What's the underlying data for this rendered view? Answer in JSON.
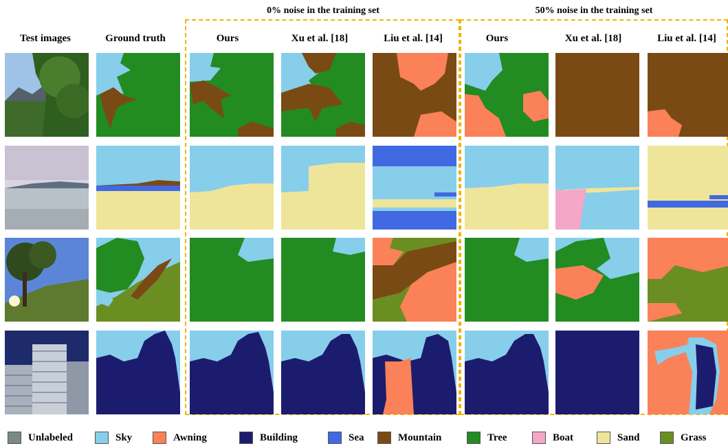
{
  "group_titles": {
    "noise0": "0% noise in the training set",
    "noise50": "50% noise in the training set"
  },
  "columns": [
    "Test images",
    "Ground truth",
    "Ours",
    "Xu et al. [18]",
    "Liu et al. [14]",
    "Ours",
    "Xu et al. [18]",
    "Liu et al. [14]"
  ],
  "legend": [
    {
      "label": "Unlabeled",
      "color": "#7a8a80"
    },
    {
      "label": "Sky",
      "color": "#87ceeb"
    },
    {
      "label": "Awning",
      "color": "#fa8158"
    },
    {
      "label": "Building",
      "color": "#1c1c6e"
    },
    {
      "label": "Sea",
      "color": "#4169e1"
    },
    {
      "label": "Mountain",
      "color": "#7a4a14"
    },
    {
      "label": "Tree",
      "color": "#228b22"
    },
    {
      "label": "Boat",
      "color": "#f4a7c6"
    },
    {
      "label": "Sand",
      "color": "#efe59a"
    },
    {
      "label": "Grass",
      "color": "#6b8e23"
    }
  ]
}
